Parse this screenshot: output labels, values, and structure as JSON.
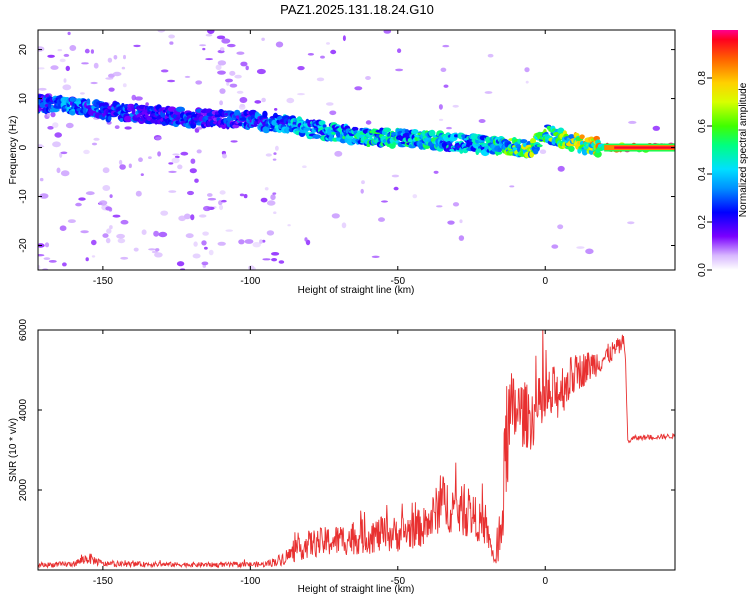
{
  "title": "PAZ1.2025.131.18.24.G10",
  "colors": {
    "snr_line": "#e83030",
    "ridge_peak": "#ff0030",
    "colormap": "rainbow"
  },
  "chart_data": [
    {
      "type": "heatmap",
      "name": "spectrogram",
      "xlabel": "Height of straight line (km)",
      "ylabel": "Frequency (Hz)",
      "xlim": [
        -172,
        44
      ],
      "ylim": [
        -25,
        24
      ],
      "xticks": [
        "-150",
        "-100",
        "-50",
        "0"
      ],
      "xtick_values": [
        -150,
        -100,
        -50,
        0
      ],
      "yticks": [
        "20",
        "10",
        "0",
        "-10",
        "-20"
      ],
      "ytick_values": [
        20,
        10,
        0,
        -10,
        -20
      ],
      "colorbar": {
        "label": "Normalized spectral amplitude",
        "range": [
          0,
          1
        ],
        "ticks": [
          "0.0",
          "0.2",
          "0.4",
          "0.6",
          "0.8"
        ],
        "tick_values": [
          0.0,
          0.2,
          0.4,
          0.6,
          0.8
        ]
      },
      "ridge": {
        "x": [
          -170,
          -160,
          -150,
          -140,
          -130,
          -120,
          -110,
          -100,
          -90,
          -80,
          -70,
          -60,
          -50,
          -40,
          -30,
          -20,
          -10,
          -5,
          0,
          5,
          10,
          20,
          30,
          44
        ],
        "frequency": [
          9,
          8.5,
          7.5,
          7,
          6.5,
          6,
          6,
          5.5,
          5,
          4,
          3,
          2,
          2,
          1.5,
          1,
          0.5,
          0,
          -0.5,
          3,
          2,
          1,
          0,
          0,
          0
        ],
        "amplitude": [
          0.3,
          0.35,
          0.3,
          0.3,
          0.25,
          0.3,
          0.25,
          0.3,
          0.4,
          0.4,
          0.45,
          0.5,
          0.45,
          0.5,
          0.4,
          0.45,
          0.6,
          0.65,
          0.55,
          0.6,
          0.7,
          0.8,
          0.95,
          0.95
        ]
      }
    },
    {
      "type": "line",
      "name": "snr",
      "xlabel": "Height of straight line (km)",
      "ylabel": "SNR (10 * v/v)",
      "xlim": [
        -172,
        44
      ],
      "ylim": [
        0,
        6000
      ],
      "xticks": [
        "-150",
        "-100",
        "-50",
        "0"
      ],
      "xtick_values": [
        -150,
        -100,
        -50,
        0
      ],
      "yticks": [
        "2000",
        "4000",
        "6000"
      ],
      "ytick_values": [
        2000,
        4000,
        6000
      ],
      "envelope": {
        "x": [
          -172,
          -160,
          -155,
          -150,
          -130,
          -110,
          -95,
          -90,
          -85,
          -80,
          -70,
          -60,
          -50,
          -40,
          -35,
          -30,
          -25,
          -20,
          -17,
          -15,
          -13,
          -10,
          -5,
          0,
          5,
          10,
          20,
          27,
          28,
          30,
          44
        ],
        "y": [
          120,
          150,
          300,
          150,
          140,
          130,
          140,
          250,
          450,
          650,
          750,
          850,
          900,
          1100,
          1700,
          1500,
          1400,
          1000,
          200,
          800,
          3500,
          4000,
          3800,
          4200,
          4500,
          4900,
          5300,
          5700,
          3200,
          3300,
          3350
        ],
        "noise": [
          60,
          70,
          150,
          70,
          60,
          60,
          70,
          150,
          250,
          350,
          400,
          450,
          450,
          500,
          700,
          650,
          600,
          400,
          100,
          900,
          1600,
          900,
          800,
          800,
          700,
          500,
          300,
          200,
          60,
          60,
          60
        ]
      }
    }
  ]
}
